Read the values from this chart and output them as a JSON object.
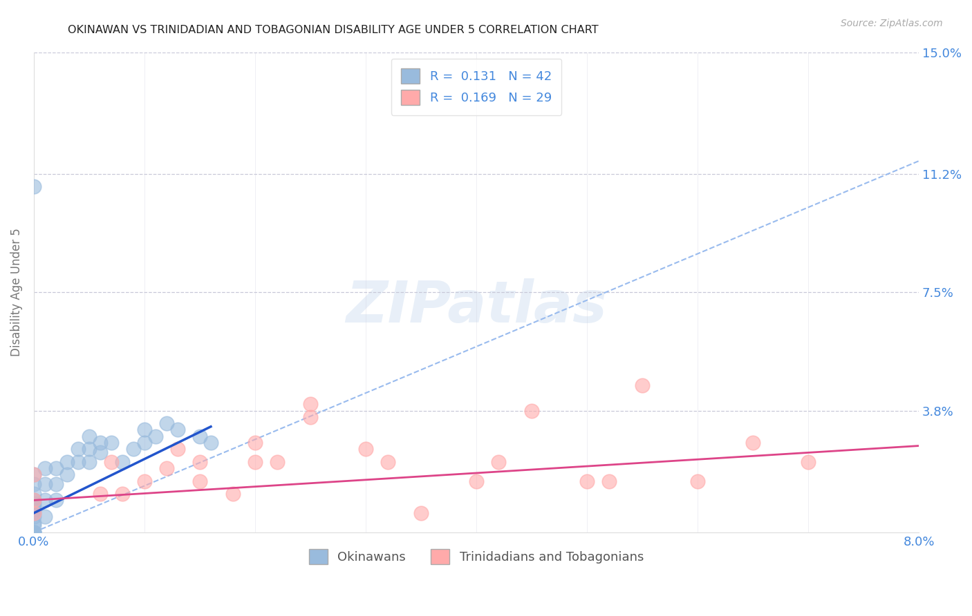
{
  "title": "OKINAWAN VS TRINIDADIAN AND TOBAGONIAN DISABILITY AGE UNDER 5 CORRELATION CHART",
  "source": "Source: ZipAtlas.com",
  "ylabel": "Disability Age Under 5",
  "xlim": [
    0.0,
    0.08
  ],
  "ylim": [
    0.0,
    0.15
  ],
  "ytick_vals": [
    0.038,
    0.075,
    0.112,
    0.15
  ],
  "ytick_labels": [
    "3.8%",
    "7.5%",
    "11.2%",
    "15.0%"
  ],
  "xtick_vals": [
    0.0,
    0.08
  ],
  "xtick_labels": [
    "0.0%",
    "8.0%"
  ],
  "grid_color": "#c8c8d8",
  "background_color": "#ffffff",
  "watermark": "ZIPatlas",
  "legend_R1": "0.131",
  "legend_N1": "42",
  "legend_R2": "0.169",
  "legend_N2": "29",
  "blue_scatter_color": "#99bbdd",
  "pink_scatter_color": "#ffaaaa",
  "blue_line_color": "#2255cc",
  "pink_line_color": "#dd4488",
  "dash_line_color": "#99bbee",
  "title_color": "#222222",
  "axis_label_color": "#4488dd",
  "ylabel_color": "#777777",
  "okinawan_x": [
    0.0,
    0.0,
    0.0,
    0.0,
    0.0,
    0.0,
    0.0,
    0.0,
    0.0,
    0.0,
    0.0,
    0.0,
    0.0,
    0.0,
    0.0,
    0.001,
    0.001,
    0.001,
    0.001,
    0.002,
    0.002,
    0.002,
    0.003,
    0.003,
    0.004,
    0.004,
    0.005,
    0.005,
    0.005,
    0.006,
    0.006,
    0.007,
    0.008,
    0.009,
    0.01,
    0.01,
    0.011,
    0.012,
    0.013,
    0.015,
    0.016,
    0.0
  ],
  "okinawan_y": [
    0.0,
    0.0,
    0.0,
    0.0,
    0.002,
    0.003,
    0.005,
    0.006,
    0.007,
    0.008,
    0.009,
    0.01,
    0.012,
    0.015,
    0.018,
    0.005,
    0.01,
    0.015,
    0.02,
    0.01,
    0.015,
    0.02,
    0.018,
    0.022,
    0.022,
    0.026,
    0.022,
    0.026,
    0.03,
    0.025,
    0.028,
    0.028,
    0.022,
    0.026,
    0.028,
    0.032,
    0.03,
    0.034,
    0.032,
    0.03,
    0.028,
    0.108
  ],
  "trinidadian_x": [
    0.0,
    0.0,
    0.0,
    0.006,
    0.007,
    0.008,
    0.01,
    0.012,
    0.013,
    0.015,
    0.015,
    0.018,
    0.02,
    0.02,
    0.022,
    0.025,
    0.025,
    0.03,
    0.032,
    0.035,
    0.04,
    0.042,
    0.045,
    0.05,
    0.052,
    0.055,
    0.06,
    0.065,
    0.07
  ],
  "trinidadian_y": [
    0.006,
    0.01,
    0.018,
    0.012,
    0.022,
    0.012,
    0.016,
    0.02,
    0.026,
    0.016,
    0.022,
    0.012,
    0.022,
    0.028,
    0.022,
    0.036,
    0.04,
    0.026,
    0.022,
    0.006,
    0.016,
    0.022,
    0.038,
    0.016,
    0.016,
    0.046,
    0.016,
    0.028,
    0.022
  ],
  "blue_line_x0": 0.0,
  "blue_line_y0": 0.006,
  "blue_line_x1": 0.016,
  "blue_line_y1": 0.033,
  "pink_line_x0": 0.0,
  "pink_line_y0": 0.01,
  "pink_line_x1": 0.08,
  "pink_line_y1": 0.027,
  "dash_line_x0": 0.0,
  "dash_line_y0": 0.0,
  "dash_line_x1": 0.08,
  "dash_line_y1": 0.116
}
